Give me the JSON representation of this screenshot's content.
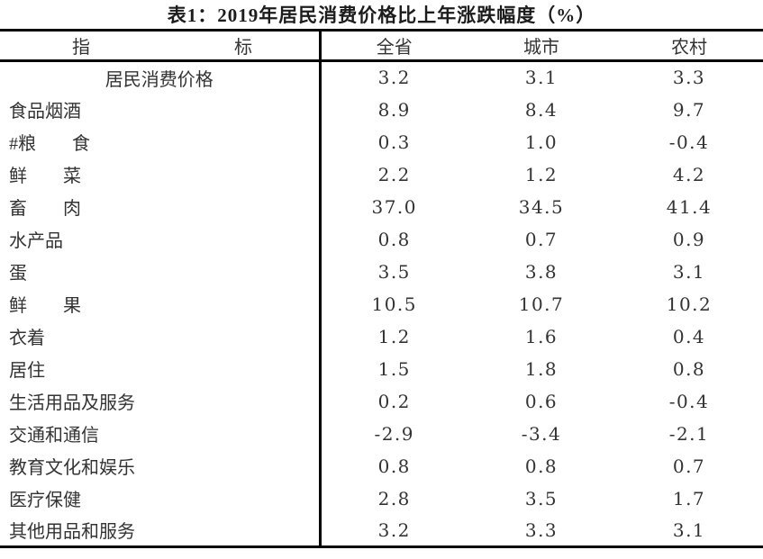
{
  "page": {
    "background_color": "#ffffff",
    "text_color": "#333333",
    "border_color": "#000000"
  },
  "title": "表1：2019年居民消费价格比上年涨跌幅度（%）",
  "table": {
    "header": {
      "indicator_left": "指",
      "indicator_right": "标",
      "columns": [
        "全省",
        "城市",
        "农村"
      ]
    },
    "rows": [
      {
        "label": "居民消费价格",
        "center": true,
        "values": [
          "3.2",
          "3.1",
          "3.3"
        ]
      },
      {
        "label": "食品烟酒",
        "center": false,
        "values": [
          "8.9",
          "8.4",
          "9.7"
        ]
      },
      {
        "label": "#粮　　食",
        "center": false,
        "values": [
          "0.3",
          "1.0",
          "-0.4"
        ]
      },
      {
        "label": "鲜　　菜",
        "center": false,
        "values": [
          "2.2",
          "1.2",
          "4.2"
        ]
      },
      {
        "label": "畜　　肉",
        "center": false,
        "values": [
          "37.0",
          "34.5",
          "41.4"
        ]
      },
      {
        "label": "水产品",
        "center": false,
        "values": [
          "0.8",
          "0.7",
          "0.9"
        ]
      },
      {
        "label": "蛋",
        "center": false,
        "values": [
          "3.5",
          "3.8",
          "3.1"
        ]
      },
      {
        "label": "鲜　　果",
        "center": false,
        "values": [
          "10.5",
          "10.7",
          "10.2"
        ]
      },
      {
        "label": "衣着",
        "center": false,
        "values": [
          "1.2",
          "1.6",
          "0.4"
        ]
      },
      {
        "label": "居住",
        "center": false,
        "values": [
          "1.5",
          "1.8",
          "0.8"
        ]
      },
      {
        "label": "生活用品及服务",
        "center": false,
        "values": [
          "0.2",
          "0.6",
          "-0.4"
        ]
      },
      {
        "label": "交通和通信",
        "center": false,
        "values": [
          "-2.9",
          "-3.4",
          "-2.1"
        ]
      },
      {
        "label": "教育文化和娱乐",
        "center": false,
        "values": [
          "0.8",
          "0.8",
          "0.7"
        ]
      },
      {
        "label": "医疗保健",
        "center": false,
        "values": [
          "2.8",
          "3.5",
          "1.7"
        ]
      },
      {
        "label": "其他用品和服务",
        "center": false,
        "values": [
          "3.2",
          "3.3",
          "3.1"
        ]
      }
    ]
  }
}
